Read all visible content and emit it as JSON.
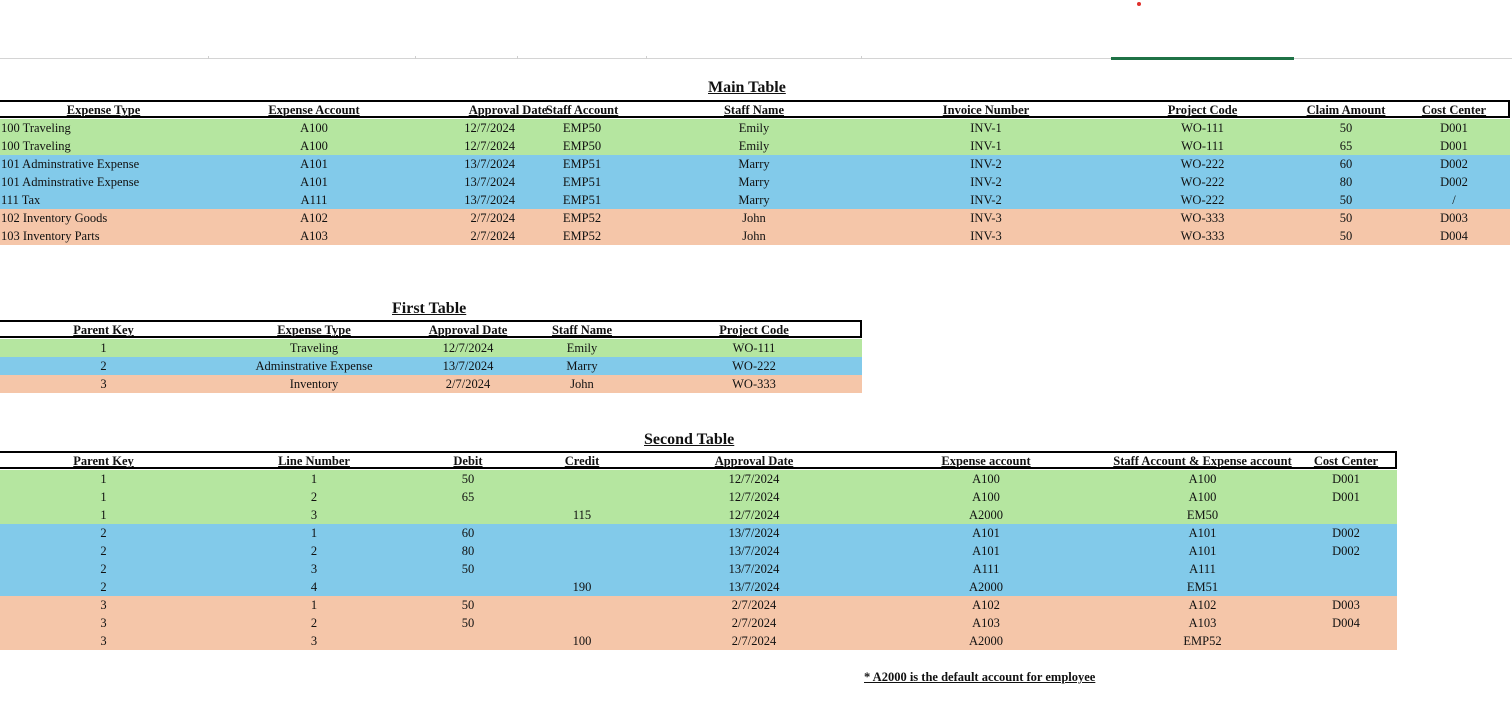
{
  "colors": {
    "green": "#b5e6a0",
    "blue": "#82caea",
    "peach": "#f5c6a9",
    "selection": "#1f7246"
  },
  "main_table": {
    "title": "Main Table",
    "headers": [
      "Expense Type",
      "Expense Account",
      "Approval Date",
      "Staff Account",
      "Staff Name",
      "Invoice Number",
      "Project Code",
      "Claim Amount",
      "Cost Center"
    ],
    "rows": [
      {
        "color": "green",
        "cells": [
          "100 Traveling",
          "A100",
          "12/7/2024",
          "EMP50",
          "Emily",
          "INV-1",
          "WO-111",
          "50",
          "D001"
        ]
      },
      {
        "color": "green",
        "cells": [
          "100 Traveling",
          "A100",
          "12/7/2024",
          "EMP50",
          "Emily",
          "INV-1",
          "WO-111",
          "65",
          "D001"
        ]
      },
      {
        "color": "blue",
        "cells": [
          "101 Adminstrative Expense",
          "A101",
          "13/7/2024",
          "EMP51",
          "Marry",
          "INV-2",
          "WO-222",
          "60",
          "D002"
        ]
      },
      {
        "color": "blue",
        "cells": [
          "101 Adminstrative Expense",
          "A101",
          "13/7/2024",
          "EMP51",
          "Marry",
          "INV-2",
          "WO-222",
          "80",
          "D002"
        ]
      },
      {
        "color": "blue",
        "cells": [
          "111 Tax",
          "A111",
          "13/7/2024",
          "EMP51",
          "Marry",
          "INV-2",
          "WO-222",
          "50",
          "/"
        ]
      },
      {
        "color": "peach",
        "cells": [
          "102 Inventory Goods",
          "A102",
          "2/7/2024",
          "EMP52",
          "John",
          "INV-3",
          "WO-333",
          "50",
          "D003"
        ]
      },
      {
        "color": "peach",
        "cells": [
          "103 Inventory Parts",
          "A103",
          "2/7/2024",
          "EMP52",
          "John",
          "INV-3",
          "WO-333",
          "50",
          "D004"
        ]
      }
    ]
  },
  "first_table": {
    "title": "First Table",
    "headers": [
      "Parent Key",
      "Expense Type",
      "Approval Date",
      "Staff Name",
      "Project Code"
    ],
    "rows": [
      {
        "color": "green",
        "cells": [
          "1",
          "Traveling",
          "12/7/2024",
          "Emily",
          "WO-111"
        ]
      },
      {
        "color": "blue",
        "cells": [
          "2",
          "Adminstrative Expense",
          "13/7/2024",
          "Marry",
          "WO-222"
        ]
      },
      {
        "color": "peach",
        "cells": [
          "3",
          "Inventory",
          "2/7/2024",
          "John",
          "WO-333"
        ]
      }
    ]
  },
  "second_table": {
    "title": "Second Table",
    "headers": [
      "Parent Key",
      "Line Number",
      "Debit",
      "Credit",
      "Approval Date",
      "Expense account",
      "Staff Account & Expense account",
      "Cost Center"
    ],
    "rows": [
      {
        "color": "green",
        "cells": [
          "1",
          "1",
          "50",
          "",
          "12/7/2024",
          "A100",
          "A100",
          "D001"
        ]
      },
      {
        "color": "green",
        "cells": [
          "1",
          "2",
          "65",
          "",
          "12/7/2024",
          "A100",
          "A100",
          "D001"
        ]
      },
      {
        "color": "green",
        "cells": [
          "1",
          "3",
          "",
          "115",
          "12/7/2024",
          "A2000",
          "EM50",
          ""
        ]
      },
      {
        "color": "blue",
        "cells": [
          "2",
          "1",
          "60",
          "",
          "13/7/2024",
          "A101",
          "A101",
          "D002"
        ]
      },
      {
        "color": "blue",
        "cells": [
          "2",
          "2",
          "80",
          "",
          "13/7/2024",
          "A101",
          "A101",
          "D002"
        ]
      },
      {
        "color": "blue",
        "cells": [
          "2",
          "3",
          "50",
          "",
          "13/7/2024",
          "A111",
          "A111",
          ""
        ]
      },
      {
        "color": "blue",
        "cells": [
          "2",
          "4",
          "",
          "190",
          "13/7/2024",
          "A2000",
          "EM51",
          ""
        ]
      },
      {
        "color": "peach",
        "cells": [
          "3",
          "1",
          "50",
          "",
          "2/7/2024",
          "A102",
          "A102",
          "D003"
        ]
      },
      {
        "color": "peach",
        "cells": [
          "3",
          "2",
          "50",
          "",
          "2/7/2024",
          "A103",
          "A103",
          "D004"
        ]
      },
      {
        "color": "peach",
        "cells": [
          "3",
          "3",
          "",
          "100",
          "2/7/2024",
          "A2000",
          "EMP52",
          ""
        ]
      }
    ]
  },
  "footnote": "* A2000 is the default account for employee"
}
